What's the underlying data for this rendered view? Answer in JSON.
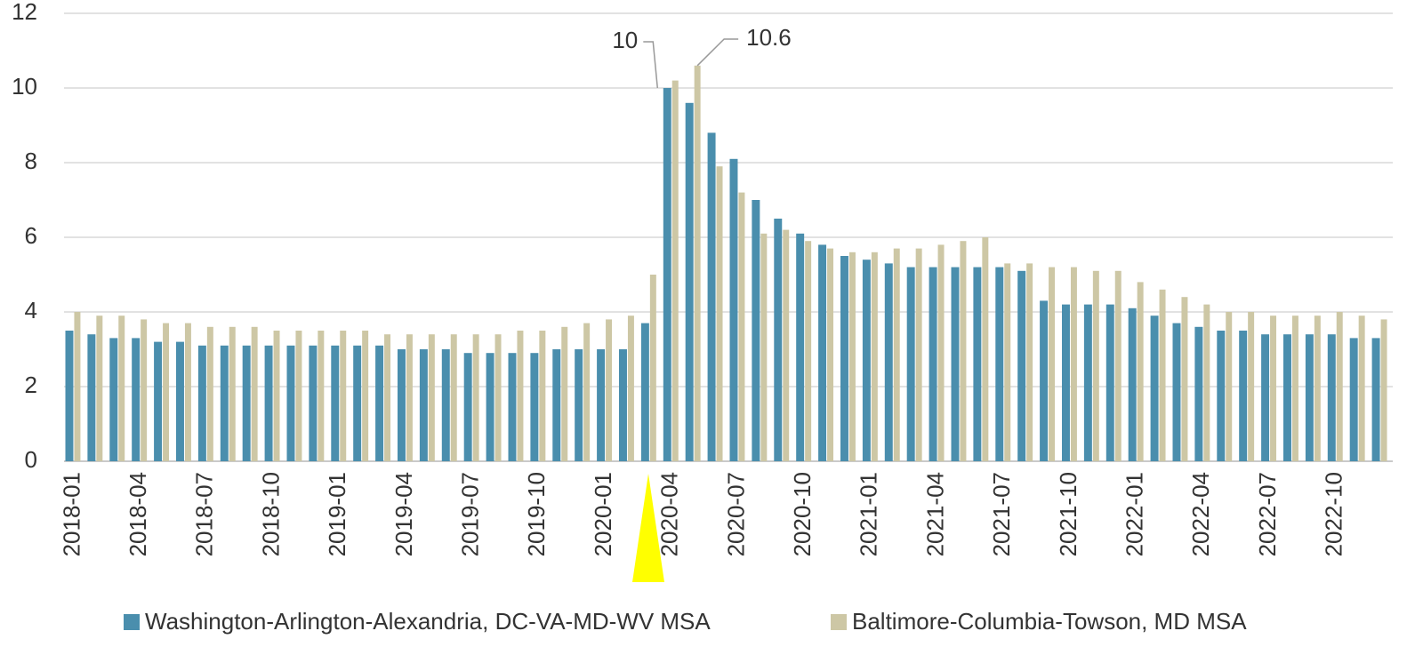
{
  "chart_data": {
    "type": "bar",
    "categories": [
      "2018-01",
      null,
      null,
      "2018-04",
      null,
      null,
      "2018-07",
      null,
      null,
      "2018-10",
      null,
      null,
      "2019-01",
      null,
      null,
      "2019-04",
      null,
      null,
      "2019-07",
      null,
      null,
      "2019-10",
      null,
      null,
      "2020-01",
      null,
      null,
      "2020-04",
      null,
      null,
      "2020-07",
      null,
      null,
      "2020-10",
      null,
      null,
      "2021-01",
      null,
      null,
      "2021-04",
      null,
      null,
      "2021-07",
      null,
      null,
      "2021-10",
      null,
      null,
      "2022-01",
      null,
      null,
      "2022-04",
      null,
      null,
      "2022-07",
      null,
      null,
      "2022-10",
      null,
      null
    ],
    "series": [
      {
        "name": "Washington-Arlington-Alexandria, DC-VA-MD-WV MSA",
        "color": "#4a8ead",
        "values": [
          3.5,
          3.4,
          3.3,
          3.3,
          3.2,
          3.2,
          3.1,
          3.1,
          3.1,
          3.1,
          3.1,
          3.1,
          3.1,
          3.1,
          3.1,
          3.0,
          3.0,
          3.0,
          2.9,
          2.9,
          2.9,
          2.9,
          3.0,
          3.0,
          3.0,
          3.0,
          3.7,
          10,
          9.6,
          8.8,
          8.1,
          7.0,
          6.5,
          6.1,
          5.8,
          5.5,
          5.4,
          5.3,
          5.2,
          5.2,
          5.2,
          5.2,
          5.2,
          5.1,
          4.3,
          4.2,
          4.2,
          4.2,
          4.1,
          3.9,
          3.7,
          3.6,
          3.5,
          3.5,
          3.4,
          3.4,
          3.4,
          3.4,
          3.3,
          3.3
        ]
      },
      {
        "name": "Baltimore-Columbia-Towson, MD MSA",
        "color": "#cdc7a5",
        "values": [
          4.0,
          3.9,
          3.9,
          3.8,
          3.7,
          3.7,
          3.6,
          3.6,
          3.6,
          3.5,
          3.5,
          3.5,
          3.5,
          3.5,
          3.4,
          3.4,
          3.4,
          3.4,
          3.4,
          3.4,
          3.5,
          3.5,
          3.6,
          3.7,
          3.8,
          3.9,
          5.0,
          10.2,
          10.6,
          7.9,
          7.2,
          6.1,
          6.2,
          5.9,
          5.7,
          5.6,
          5.6,
          5.7,
          5.7,
          5.8,
          5.9,
          6.0,
          5.3,
          5.3,
          5.2,
          5.2,
          5.1,
          5.1,
          4.8,
          4.6,
          4.4,
          4.2,
          4.0,
          4.0,
          3.9,
          3.9,
          3.9,
          4.0,
          3.9,
          3.8
        ]
      }
    ],
    "ylim": [
      0,
      12
    ],
    "yticks": [
      0,
      2,
      4,
      6,
      8,
      10,
      12
    ],
    "grid": true,
    "legend": "bottom",
    "labeled_points": [
      {
        "series": 0,
        "index": 27
      },
      {
        "series": 1,
        "index": 28
      }
    ]
  }
}
